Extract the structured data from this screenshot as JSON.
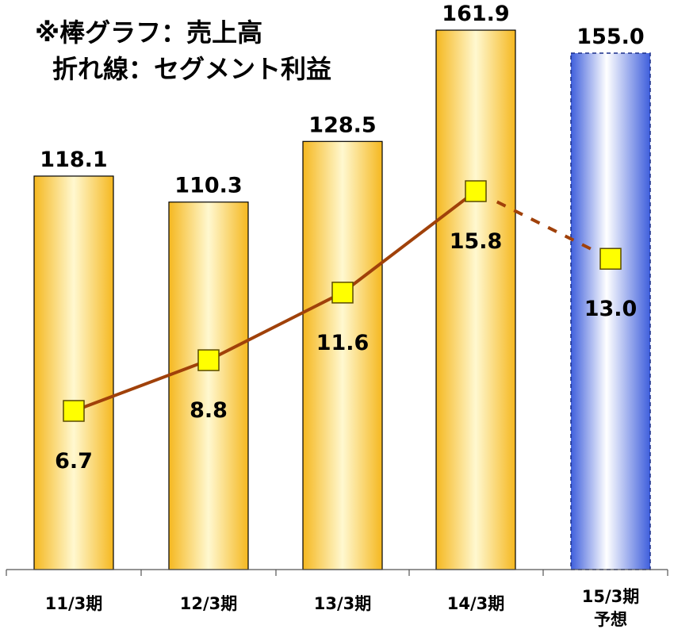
{
  "legend": {
    "line1": "※棒グラフ：売上高",
    "line2": "折れ線：セグメント利益"
  },
  "colors": {
    "bar_fill_light": "#fff8d0",
    "bar_fill_dark": "#f5b820",
    "bar_stroke": "#000000",
    "forecast_fill_light": "#ffffff",
    "forecast_fill_dark": "#3f5fdc",
    "forecast_stroke": "#1a2f8a",
    "line": "#a0410a",
    "marker_fill": "#ffff00",
    "marker_stroke": "#5a4a00"
  },
  "chart_data": {
    "type": "bar",
    "categories": [
      "11/3期",
      "12/3期",
      "13/3期",
      "14/3期",
      "15/3期"
    ],
    "category_sublabels": [
      "",
      "",
      "",
      "",
      "予想"
    ],
    "forecast_index": 4,
    "series": [
      {
        "name": "売上高",
        "type": "bar",
        "values": [
          118.1,
          110.3,
          128.5,
          161.9,
          155.0
        ],
        "labels": [
          "118.1",
          "110.3",
          "128.5",
          "161.9",
          "155.0"
        ]
      },
      {
        "name": "セグメント利益",
        "type": "line",
        "values": [
          6.7,
          8.8,
          11.6,
          15.8,
          13.0
        ],
        "labels": [
          "6.7",
          "8.8",
          "11.6",
          "15.8",
          "13.0"
        ],
        "forecast_dashed_from_index": 3
      }
    ],
    "bar_axis_range": [
      0,
      170
    ],
    "line_axis_range": [
      0,
      22
    ],
    "title": "",
    "xlabel": "",
    "ylabel": "",
    "grid": false,
    "legend_position": "top-left"
  }
}
